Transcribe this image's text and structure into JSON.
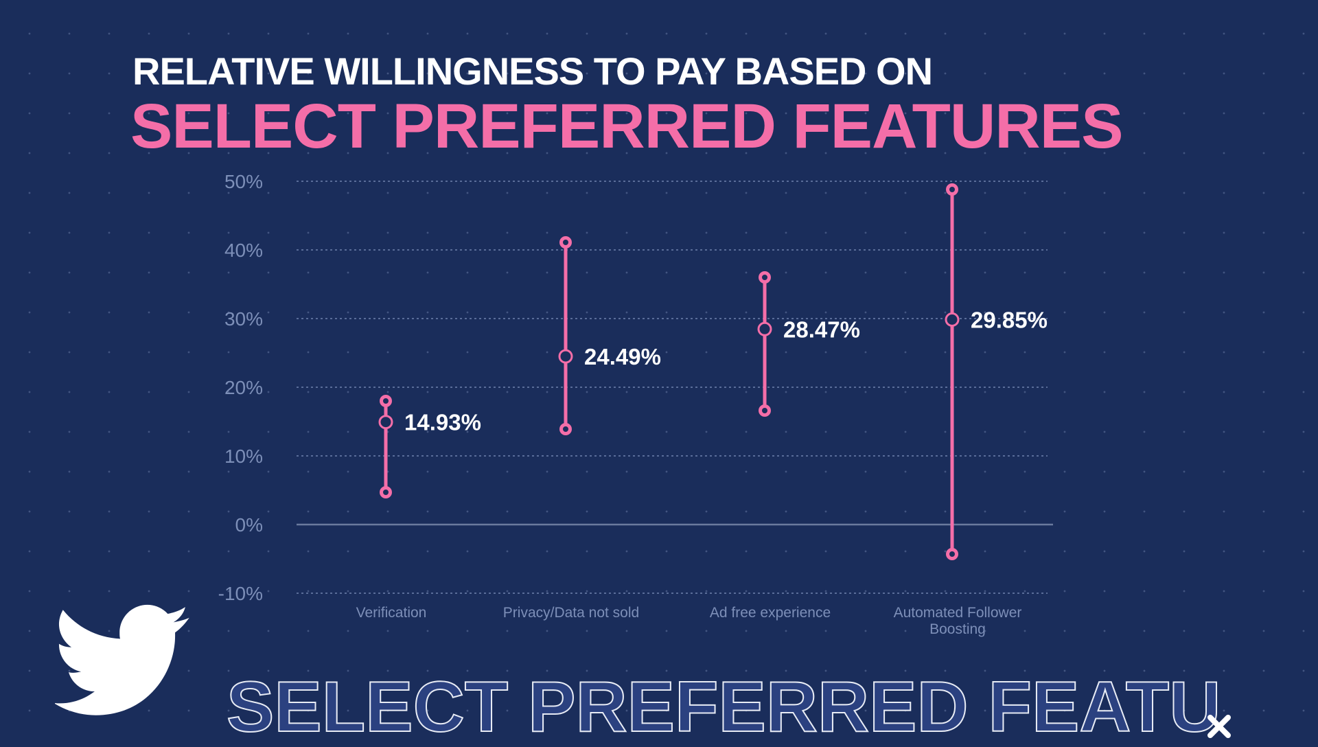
{
  "title_line1": "RELATIVE WILLINGNESS TO PAY BASED ON",
  "title_line2": "SELECT PREFERRED FEATURES",
  "footer_outline_text": "SELECT PREFERRED FEATU",
  "icons": {
    "logo": "twitter-bird-icon",
    "corner": "close-x-icon"
  },
  "colors": {
    "background": "#1a2d5b",
    "accent": "#f46ea8",
    "axis_text": "#7d8fb8",
    "label_text": "#ffffff"
  },
  "chart_data": {
    "type": "range-dot",
    "title": "RELATIVE WILLINGNESS TO PAY BASED ON SELECT PREFERRED FEATURES",
    "xlabel": "",
    "ylabel": "",
    "ylim": [
      -10,
      50
    ],
    "yticks": [
      "50%",
      "40%",
      "30%",
      "20%",
      "10%",
      "0%",
      "-10%"
    ],
    "ytick_values": [
      50,
      40,
      30,
      20,
      10,
      0,
      -10
    ],
    "grid": true,
    "categories": [
      "Verification",
      "Privacy/Data not sold",
      "Ad free experience",
      "Automated Follower Boosting"
    ],
    "series": [
      {
        "values": [
          14.93,
          24.49,
          28.47,
          29.85
        ],
        "labels": [
          "14.93%",
          "24.49%",
          "28.47%",
          "29.85%"
        ],
        "low": [
          4.7,
          13.9,
          16.6,
          -4.3
        ],
        "high": [
          18.0,
          41.1,
          36.0,
          48.8
        ]
      }
    ]
  }
}
